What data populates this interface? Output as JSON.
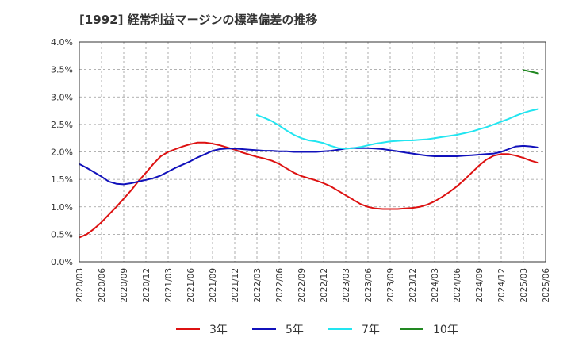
{
  "chart_data": {
    "type": "line",
    "title": "[1992]  経常利益マージンの標準偏差の推移",
    "xlabel": "",
    "ylabel": "",
    "ylim": [
      0,
      4.0
    ],
    "y_ticks": [
      "0.0%",
      "0.5%",
      "1.0%",
      "1.5%",
      "2.0%",
      "2.5%",
      "3.0%",
      "3.5%",
      "4.0%"
    ],
    "x_ticks": [
      "2020/03",
      "2020/06",
      "2020/09",
      "2020/12",
      "2021/03",
      "2021/06",
      "2021/09",
      "2021/12",
      "2022/03",
      "2022/06",
      "2022/09",
      "2022/12",
      "2023/03",
      "2023/06",
      "2023/09",
      "2023/12",
      "2024/03",
      "2024/06",
      "2024/09",
      "2024/12",
      "2025/03",
      "2025/06"
    ],
    "grid": true,
    "legend_position": "bottom",
    "series": [
      {
        "name": "3年",
        "color": "#dd1111",
        "points": [
          [
            "2020/03",
            0.44
          ],
          [
            "2020/04",
            0.5
          ],
          [
            "2020/05",
            0.6
          ],
          [
            "2020/06",
            0.72
          ],
          [
            "2020/07",
            0.86
          ],
          [
            "2020/08",
            1.0
          ],
          [
            "2020/09",
            1.15
          ],
          [
            "2020/10",
            1.3
          ],
          [
            "2020/11",
            1.47
          ],
          [
            "2020/12",
            1.62
          ],
          [
            "2021/01",
            1.78
          ],
          [
            "2021/02",
            1.92
          ],
          [
            "2021/03",
            2.0
          ],
          [
            "2021/04",
            2.05
          ],
          [
            "2021/05",
            2.1
          ],
          [
            "2021/06",
            2.14
          ],
          [
            "2021/07",
            2.17
          ],
          [
            "2021/08",
            2.17
          ],
          [
            "2021/09",
            2.15
          ],
          [
            "2021/10",
            2.12
          ],
          [
            "2021/11",
            2.08
          ],
          [
            "2021/12",
            2.04
          ],
          [
            "2022/01",
            1.99
          ],
          [
            "2022/02",
            1.95
          ],
          [
            "2022/03",
            1.91
          ],
          [
            "2022/04",
            1.88
          ],
          [
            "2022/05",
            1.84
          ],
          [
            "2022/06",
            1.78
          ],
          [
            "2022/07",
            1.7
          ],
          [
            "2022/08",
            1.62
          ],
          [
            "2022/09",
            1.56
          ],
          [
            "2022/10",
            1.52
          ],
          [
            "2022/11",
            1.48
          ],
          [
            "2022/12",
            1.43
          ],
          [
            "2023/01",
            1.37
          ],
          [
            "2023/02",
            1.29
          ],
          [
            "2023/03",
            1.21
          ],
          [
            "2023/04",
            1.13
          ],
          [
            "2023/05",
            1.05
          ],
          [
            "2023/06",
            1.0
          ],
          [
            "2023/07",
            0.97
          ],
          [
            "2023/08",
            0.96
          ],
          [
            "2023/09",
            0.96
          ],
          [
            "2023/10",
            0.96
          ],
          [
            "2023/11",
            0.97
          ],
          [
            "2023/12",
            0.98
          ],
          [
            "2024/01",
            1.0
          ],
          [
            "2024/02",
            1.04
          ],
          [
            "2024/03",
            1.1
          ],
          [
            "2024/04",
            1.18
          ],
          [
            "2024/05",
            1.27
          ],
          [
            "2024/06",
            1.37
          ],
          [
            "2024/07",
            1.49
          ],
          [
            "2024/08",
            1.62
          ],
          [
            "2024/09",
            1.75
          ],
          [
            "2024/10",
            1.86
          ],
          [
            "2024/11",
            1.93
          ],
          [
            "2024/12",
            1.96
          ],
          [
            "2025/01",
            1.96
          ],
          [
            "2025/02",
            1.93
          ],
          [
            "2025/03",
            1.89
          ],
          [
            "2025/04",
            1.84
          ],
          [
            "2025/05",
            1.8
          ]
        ]
      },
      {
        "name": "5年",
        "color": "#1111bb",
        "points": [
          [
            "2020/03",
            1.78
          ],
          [
            "2020/04",
            1.71
          ],
          [
            "2020/05",
            1.63
          ],
          [
            "2020/06",
            1.55
          ],
          [
            "2020/07",
            1.46
          ],
          [
            "2020/08",
            1.42
          ],
          [
            "2020/09",
            1.41
          ],
          [
            "2020/10",
            1.43
          ],
          [
            "2020/11",
            1.46
          ],
          [
            "2020/12",
            1.49
          ],
          [
            "2021/01",
            1.52
          ],
          [
            "2021/02",
            1.57
          ],
          [
            "2021/03",
            1.64
          ],
          [
            "2021/04",
            1.71
          ],
          [
            "2021/05",
            1.77
          ],
          [
            "2021/06",
            1.83
          ],
          [
            "2021/07",
            1.9
          ],
          [
            "2021/08",
            1.96
          ],
          [
            "2021/09",
            2.02
          ],
          [
            "2021/10",
            2.05
          ],
          [
            "2021/11",
            2.06
          ],
          [
            "2021/12",
            2.06
          ],
          [
            "2022/01",
            2.05
          ],
          [
            "2022/02",
            2.04
          ],
          [
            "2022/03",
            2.03
          ],
          [
            "2022/04",
            2.02
          ],
          [
            "2022/05",
            2.02
          ],
          [
            "2022/06",
            2.01
          ],
          [
            "2022/07",
            2.01
          ],
          [
            "2022/08",
            2.0
          ],
          [
            "2022/09",
            2.0
          ],
          [
            "2022/10",
            2.0
          ],
          [
            "2022/11",
            2.0
          ],
          [
            "2022/12",
            2.01
          ],
          [
            "2023/01",
            2.02
          ],
          [
            "2023/02",
            2.04
          ],
          [
            "2023/03",
            2.06
          ],
          [
            "2023/04",
            2.07
          ],
          [
            "2023/05",
            2.07
          ],
          [
            "2023/06",
            2.07
          ],
          [
            "2023/07",
            2.06
          ],
          [
            "2023/08",
            2.05
          ],
          [
            "2023/09",
            2.03
          ],
          [
            "2023/10",
            2.01
          ],
          [
            "2023/11",
            1.99
          ],
          [
            "2023/12",
            1.97
          ],
          [
            "2024/01",
            1.95
          ],
          [
            "2024/02",
            1.93
          ],
          [
            "2024/03",
            1.92
          ],
          [
            "2024/04",
            1.92
          ],
          [
            "2024/05",
            1.92
          ],
          [
            "2024/06",
            1.92
          ],
          [
            "2024/07",
            1.93
          ],
          [
            "2024/08",
            1.94
          ],
          [
            "2024/09",
            1.95
          ],
          [
            "2024/10",
            1.96
          ],
          [
            "2024/11",
            1.97
          ],
          [
            "2024/12",
            2.0
          ],
          [
            "2025/01",
            2.05
          ],
          [
            "2025/02",
            2.1
          ],
          [
            "2025/03",
            2.11
          ],
          [
            "2025/04",
            2.1
          ],
          [
            "2025/05",
            2.08
          ]
        ]
      },
      {
        "name": "7年",
        "color": "#22e5f0",
        "points": [
          [
            "2022/03",
            2.67
          ],
          [
            "2022/04",
            2.62
          ],
          [
            "2022/05",
            2.56
          ],
          [
            "2022/06",
            2.48
          ],
          [
            "2022/07",
            2.39
          ],
          [
            "2022/08",
            2.31
          ],
          [
            "2022/09",
            2.25
          ],
          [
            "2022/10",
            2.21
          ],
          [
            "2022/11",
            2.19
          ],
          [
            "2022/12",
            2.16
          ],
          [
            "2023/01",
            2.11
          ],
          [
            "2023/02",
            2.07
          ],
          [
            "2023/03",
            2.06
          ],
          [
            "2023/04",
            2.07
          ],
          [
            "2023/05",
            2.09
          ],
          [
            "2023/06",
            2.12
          ],
          [
            "2023/07",
            2.15
          ],
          [
            "2023/08",
            2.17
          ],
          [
            "2023/09",
            2.19
          ],
          [
            "2023/10",
            2.2
          ],
          [
            "2023/11",
            2.21
          ],
          [
            "2023/12",
            2.21
          ],
          [
            "2024/01",
            2.22
          ],
          [
            "2024/02",
            2.23
          ],
          [
            "2024/03",
            2.25
          ],
          [
            "2024/04",
            2.27
          ],
          [
            "2024/05",
            2.29
          ],
          [
            "2024/06",
            2.31
          ],
          [
            "2024/07",
            2.34
          ],
          [
            "2024/08",
            2.37
          ],
          [
            "2024/09",
            2.41
          ],
          [
            "2024/10",
            2.45
          ],
          [
            "2024/11",
            2.5
          ],
          [
            "2024/12",
            2.55
          ],
          [
            "2025/01",
            2.6
          ],
          [
            "2025/02",
            2.66
          ],
          [
            "2025/03",
            2.71
          ],
          [
            "2025/04",
            2.75
          ],
          [
            "2025/05",
            2.78
          ]
        ]
      },
      {
        "name": "10年",
        "color": "#228822",
        "points": [
          [
            "2025/03",
            3.49
          ],
          [
            "2025/04",
            3.46
          ],
          [
            "2025/05",
            3.43
          ]
        ]
      }
    ]
  }
}
